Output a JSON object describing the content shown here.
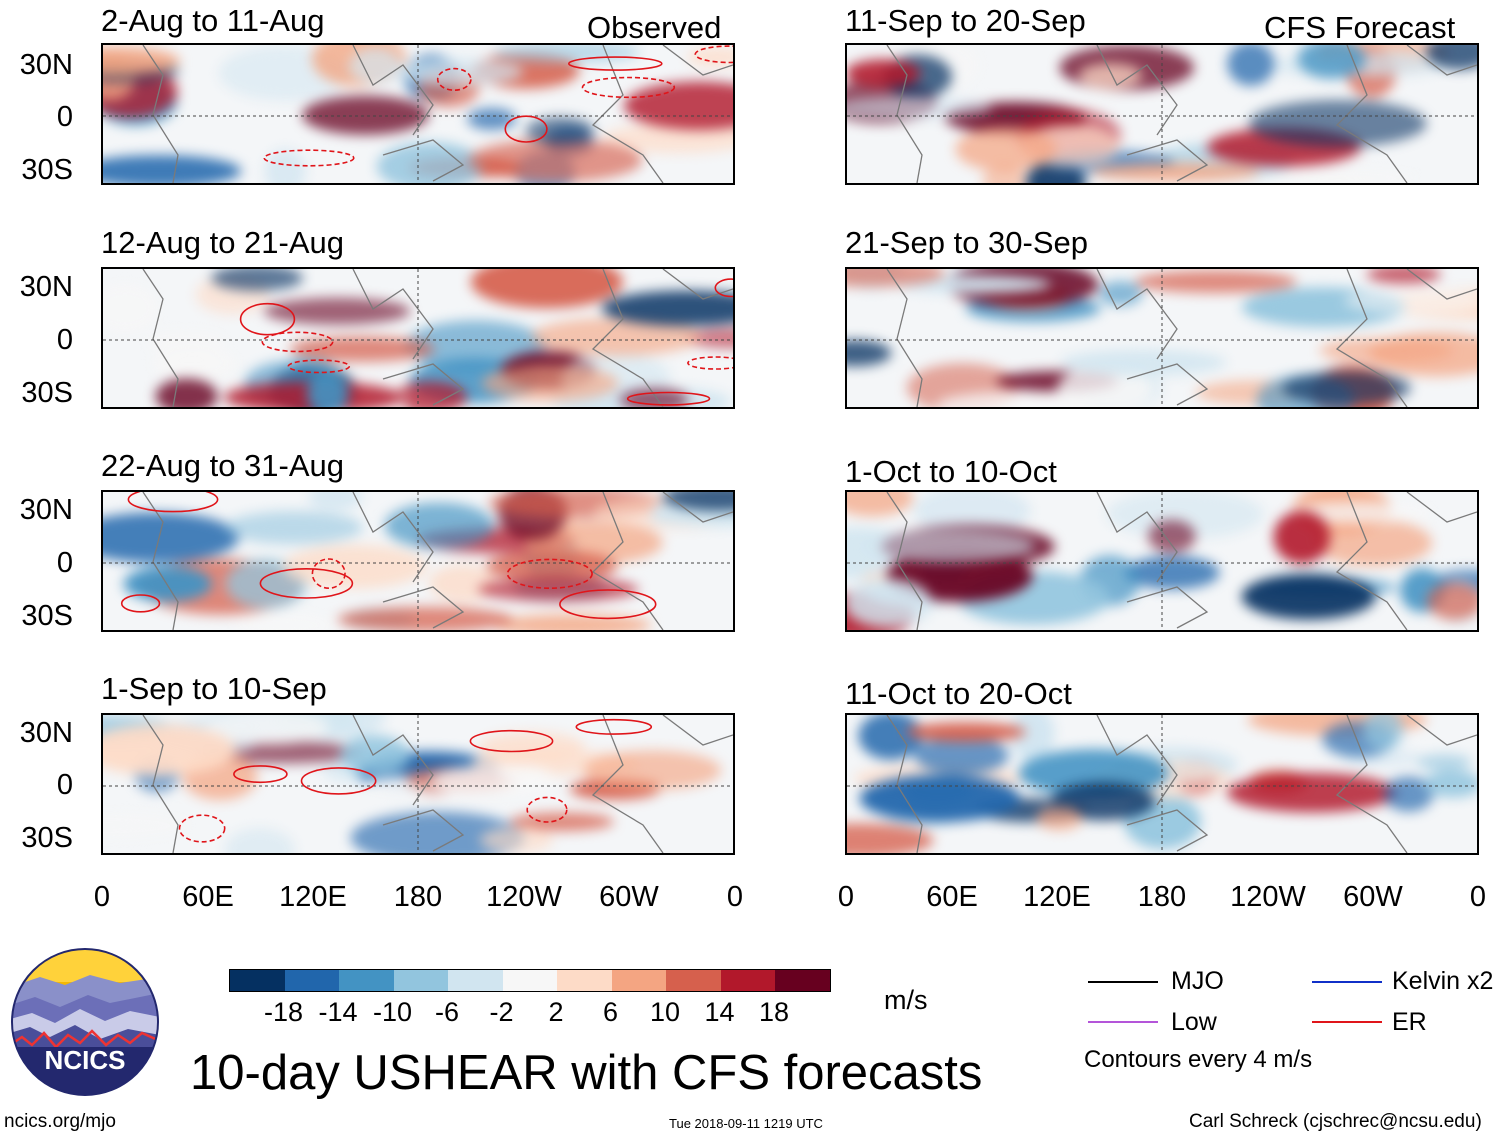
{
  "chart_data": {
    "type": "heatmap",
    "title": "10-day USHEAR with CFS forecasts",
    "units": "m/s",
    "observed_label": "Observed",
    "forecast_label": "CFS Forecast",
    "lat_ticks": [
      "30N",
      "0",
      "30S"
    ],
    "lon_ticks": [
      "0",
      "60E",
      "120E",
      "180",
      "120W",
      "60W",
      "0"
    ],
    "observed_periods": [
      "2-Aug to 11-Aug",
      "12-Aug to 21-Aug",
      "22-Aug to 31-Aug",
      "1-Sep to 10-Sep"
    ],
    "forecast_periods": [
      "11-Sep to 20-Sep",
      "21-Sep to 30-Sep",
      "1-Oct to 10-Oct",
      "11-Oct to 20-Oct"
    ],
    "colorbar": {
      "ticks": [
        "-18",
        "-14",
        "-10",
        "-6",
        "-2",
        "2",
        "6",
        "10",
        "14",
        "18"
      ],
      "colors": [
        "#053061",
        "#2166ac",
        "#4393c3",
        "#92c5de",
        "#d1e5f0",
        "#f7f7f7",
        "#fddbc7",
        "#f4a582",
        "#d6604d",
        "#b2182b",
        "#67001f"
      ]
    },
    "legend": {
      "mjo": {
        "label": "MJO",
        "color": "#000000"
      },
      "low": {
        "label": "Low",
        "color": "#b455d9"
      },
      "kelvin": {
        "label": "Kelvin x2",
        "color": "#1030c8"
      },
      "er": {
        "label": "ER",
        "color": "#e0151a"
      }
    },
    "contour_note": "Contours every 4 m/s"
  },
  "footer": {
    "url": "ncics.org/mjo",
    "timestamp": "Tue 2018-09-11 1219 UTC",
    "author": "Carl Schreck (cjschrec@ncsu.edu)"
  },
  "logo": {
    "text": "NCICS"
  }
}
